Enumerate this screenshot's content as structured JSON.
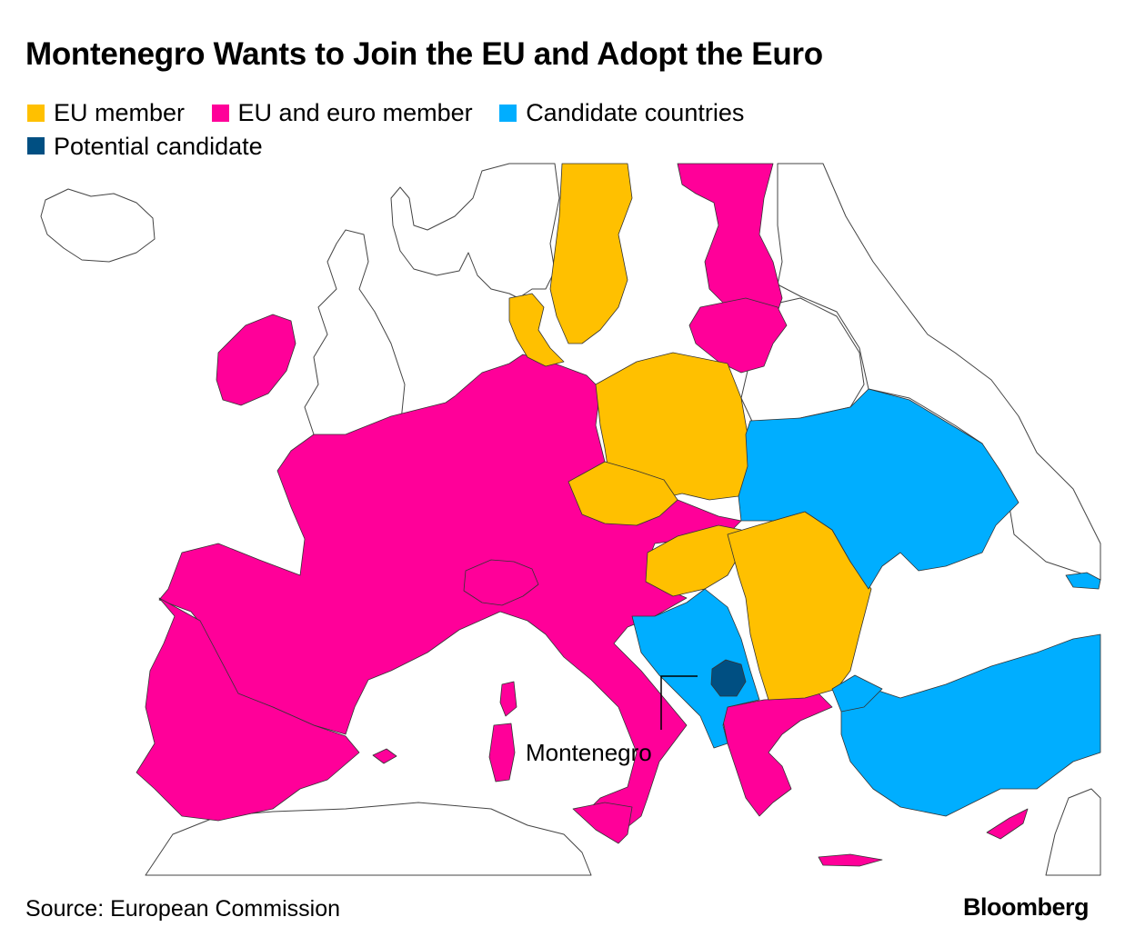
{
  "title": "Montenegro Wants to Join the EU and Adopt the Euro",
  "legend": [
    {
      "label": "EU member",
      "color": "#FFC000"
    },
    {
      "label": "EU and euro member",
      "color": "#FF0099"
    },
    {
      "label": "Candidate countries",
      "color": "#00AEFF"
    },
    {
      "label": "Potential candidate",
      "color": "#004F82"
    }
  ],
  "annotation": {
    "label": "Montenegro"
  },
  "source": "Source: European Commission",
  "brand": "Bloomberg"
}
